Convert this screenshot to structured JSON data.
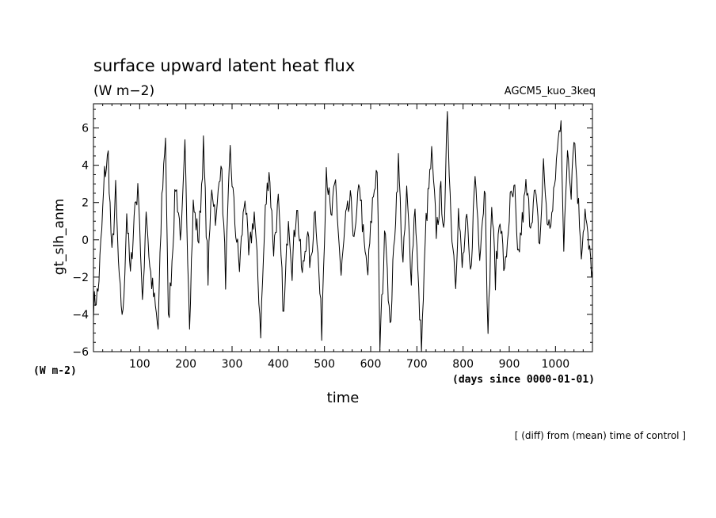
{
  "header": {
    "title": "surface upward latent heat flux",
    "units": "(W m−2)",
    "experiment": "AGCM5_kuo_3keq"
  },
  "footer": {
    "note": "[ (diff) from (mean) time of control ]"
  },
  "chart_data": {
    "type": "line",
    "xlabel": "time",
    "x_units": "(days since 0000-01-01)",
    "ylabel": "gt_slh_anm",
    "y_units": "(W m-2)",
    "xlim": [
      0,
      1080
    ],
    "ylim": [
      -6,
      7.3
    ],
    "x_ticks": [
      100,
      200,
      300,
      400,
      500,
      600,
      700,
      800,
      900,
      1000
    ],
    "x_tick_labels": [
      "100",
      "200",
      "300",
      "400",
      "500",
      "600",
      "700",
      "800",
      "900",
      "1000"
    ],
    "y_ticks": [
      -6,
      -4,
      -2,
      0,
      2,
      4,
      6
    ],
    "y_tick_labels": [
      "−6",
      "−4",
      "−2",
      "0",
      "2",
      "4",
      "6"
    ],
    "series": [
      {
        "color": "#000000",
        "x_step_days": 2,
        "keypoints": [
          [
            0,
            -3.5
          ],
          [
            10,
            -2.8
          ],
          [
            18,
            0.5
          ],
          [
            24,
            3.5
          ],
          [
            32,
            4.5
          ],
          [
            40,
            -1.0
          ],
          [
            48,
            2.6
          ],
          [
            56,
            -2.5
          ],
          [
            64,
            -4.2
          ],
          [
            72,
            1.5
          ],
          [
            80,
            -2.0
          ],
          [
            90,
            2.0
          ],
          [
            98,
            2.6
          ],
          [
            106,
            -3.8
          ],
          [
            114,
            1.8
          ],
          [
            122,
            -1.5
          ],
          [
            130,
            -3.0
          ],
          [
            140,
            -4.8
          ],
          [
            148,
            2.2
          ],
          [
            156,
            5.7
          ],
          [
            162,
            -4.5
          ],
          [
            170,
            -1.0
          ],
          [
            178,
            3.0
          ],
          [
            190,
            0.0
          ],
          [
            198,
            4.8
          ],
          [
            208,
            -4.2
          ],
          [
            216,
            1.8
          ],
          [
            228,
            0.0
          ],
          [
            238,
            5.0
          ],
          [
            248,
            -2.0
          ],
          [
            256,
            3.0
          ],
          [
            266,
            1.0
          ],
          [
            276,
            4.5
          ],
          [
            286,
            -2.0
          ],
          [
            296,
            4.7
          ],
          [
            306,
            1.0
          ],
          [
            316,
            -1.5
          ],
          [
            328,
            2.5
          ],
          [
            336,
            -1.0
          ],
          [
            348,
            1.5
          ],
          [
            362,
            -4.8
          ],
          [
            372,
            1.5
          ],
          [
            380,
            3.9
          ],
          [
            390,
            -0.5
          ],
          [
            400,
            2.0
          ],
          [
            412,
            -4.2
          ],
          [
            422,
            1.5
          ],
          [
            430,
            -1.5
          ],
          [
            440,
            2.0
          ],
          [
            452,
            -2.0
          ],
          [
            462,
            0.5
          ],
          [
            470,
            -1.5
          ],
          [
            480,
            2.0
          ],
          [
            494,
            -4.8
          ],
          [
            504,
            4.0
          ],
          [
            514,
            1.0
          ],
          [
            524,
            3.0
          ],
          [
            536,
            -2.0
          ],
          [
            546,
            1.0
          ],
          [
            556,
            2.0
          ],
          [
            566,
            0.0
          ],
          [
            576,
            3.2
          ],
          [
            586,
            -0.5
          ],
          [
            594,
            -1.8
          ],
          [
            604,
            2.0
          ],
          [
            614,
            4.0
          ],
          [
            620,
            -5.7
          ],
          [
            632,
            1.0
          ],
          [
            642,
            -5.0
          ],
          [
            652,
            0.5
          ],
          [
            660,
            4.2
          ],
          [
            670,
            -1.5
          ],
          [
            678,
            2.5
          ],
          [
            688,
            -1.8
          ],
          [
            696,
            2.0
          ],
          [
            704,
            -3.0
          ],
          [
            710,
            -5.8
          ],
          [
            720,
            1.0
          ],
          [
            732,
            4.5
          ],
          [
            742,
            0.5
          ],
          [
            752,
            2.5
          ],
          [
            760,
            0.5
          ],
          [
            766,
            7.2
          ],
          [
            774,
            1.0
          ],
          [
            784,
            -2.0
          ],
          [
            790,
            1.5
          ],
          [
            798,
            -1.5
          ],
          [
            808,
            1.0
          ],
          [
            816,
            -2.0
          ],
          [
            826,
            3.5
          ],
          [
            836,
            -0.5
          ],
          [
            848,
            3.0
          ],
          [
            854,
            -5.5
          ],
          [
            862,
            2.0
          ],
          [
            870,
            -2.0
          ],
          [
            880,
            1.5
          ],
          [
            890,
            -2.0
          ],
          [
            902,
            2.0
          ],
          [
            912,
            2.5
          ],
          [
            918,
            -1.2
          ],
          [
            926,
            0.5
          ],
          [
            936,
            2.8
          ],
          [
            946,
            1.0
          ],
          [
            956,
            2.5
          ],
          [
            966,
            -0.3
          ],
          [
            974,
            4.0
          ],
          [
            984,
            0.5
          ],
          [
            994,
            1.5
          ],
          [
            1002,
            4.2
          ],
          [
            1012,
            6.8
          ],
          [
            1018,
            -0.8
          ],
          [
            1026,
            5.0
          ],
          [
            1034,
            2.8
          ],
          [
            1040,
            5.8
          ],
          [
            1048,
            2.5
          ],
          [
            1056,
            -0.5
          ],
          [
            1064,
            1.5
          ],
          [
            1072,
            -0.5
          ],
          [
            1080,
            -1.8
          ]
        ]
      }
    ]
  }
}
